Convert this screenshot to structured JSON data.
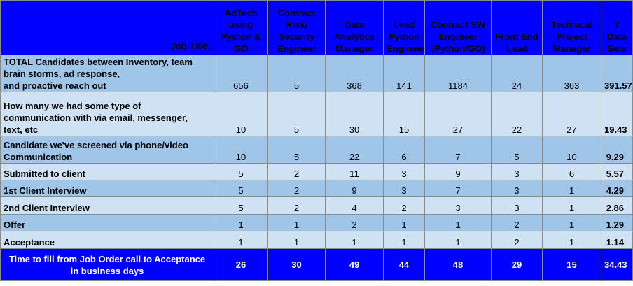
{
  "header": {
    "job_title_label": "Job Title:",
    "columns": [
      [
        "AdTech",
        "using",
        "Python &",
        "GO"
      ],
      [
        "Contract",
        "Risk/",
        "Security",
        "Engineer"
      ],
      [
        "Data",
        "Analytics",
        "Manager"
      ],
      [
        "Lead",
        "Python",
        "Engineer"
      ],
      [
        "Contract SW",
        "Engineer",
        "(Python/GO)"
      ],
      [
        "Front End",
        "Lead"
      ],
      [
        "Technical",
        "Project",
        "Manager"
      ],
      [
        "7 Data",
        "Sets"
      ]
    ]
  },
  "rows": [
    {
      "label": [
        "TOTAL Candidates between Inventory, team",
        "brain storms, ad response,",
        "and proactive reach out"
      ],
      "values": [
        "656",
        "5",
        "368",
        "141",
        "1184",
        "24",
        "363"
      ],
      "avg": "391.57",
      "shade": "dark"
    },
    {
      "label": [
        "How many we had some type of",
        "communication with via email, messenger,",
        "text, etc"
      ],
      "values": [
        "10",
        "5",
        "30",
        "15",
        "27",
        "22",
        "27"
      ],
      "avg": "19.43",
      "shade": "light"
    },
    {
      "label": [
        "Candidate we've screened via phone/video",
        "Communication"
      ],
      "values": [
        "10",
        "5",
        "22",
        "6",
        "7",
        "5",
        "10"
      ],
      "avg": "9.29",
      "shade": "dark"
    },
    {
      "label": [
        "Submitted to client"
      ],
      "values": [
        "5",
        "2",
        "11",
        "3",
        "9",
        "3",
        "6"
      ],
      "avg": "5.57",
      "shade": "light"
    },
    {
      "label": [
        "1st Client Interview"
      ],
      "values": [
        "5",
        "2",
        "9",
        "3",
        "7",
        "3",
        "1"
      ],
      "avg": "4.29",
      "shade": "dark"
    },
    {
      "label": [
        "2nd Client Interview"
      ],
      "values": [
        "5",
        "2",
        "4",
        "2",
        "3",
        "3",
        "1"
      ],
      "avg": "2.86",
      "shade": "light"
    },
    {
      "label": [
        "Offer"
      ],
      "values": [
        "1",
        "1",
        "2",
        "1",
        "1",
        "2",
        "1"
      ],
      "avg": "1.29",
      "shade": "dark"
    },
    {
      "label": [
        "Acceptance"
      ],
      "values": [
        "1",
        "1",
        "1",
        "1",
        "1",
        "2",
        "1"
      ],
      "avg": "1.14",
      "shade": "light"
    }
  ],
  "footer": {
    "label": [
      "Time to fill from Job Order call to Acceptance",
      "in business days"
    ],
    "values": [
      "26",
      "30",
      "49",
      "44",
      "48",
      "29",
      "15"
    ],
    "avg": "34.43"
  },
  "colors": {
    "header_bg": "#0000ff",
    "row_dark": "#9fc5e8",
    "row_light": "#cfe2f3",
    "border": "#8a8a8a"
  }
}
